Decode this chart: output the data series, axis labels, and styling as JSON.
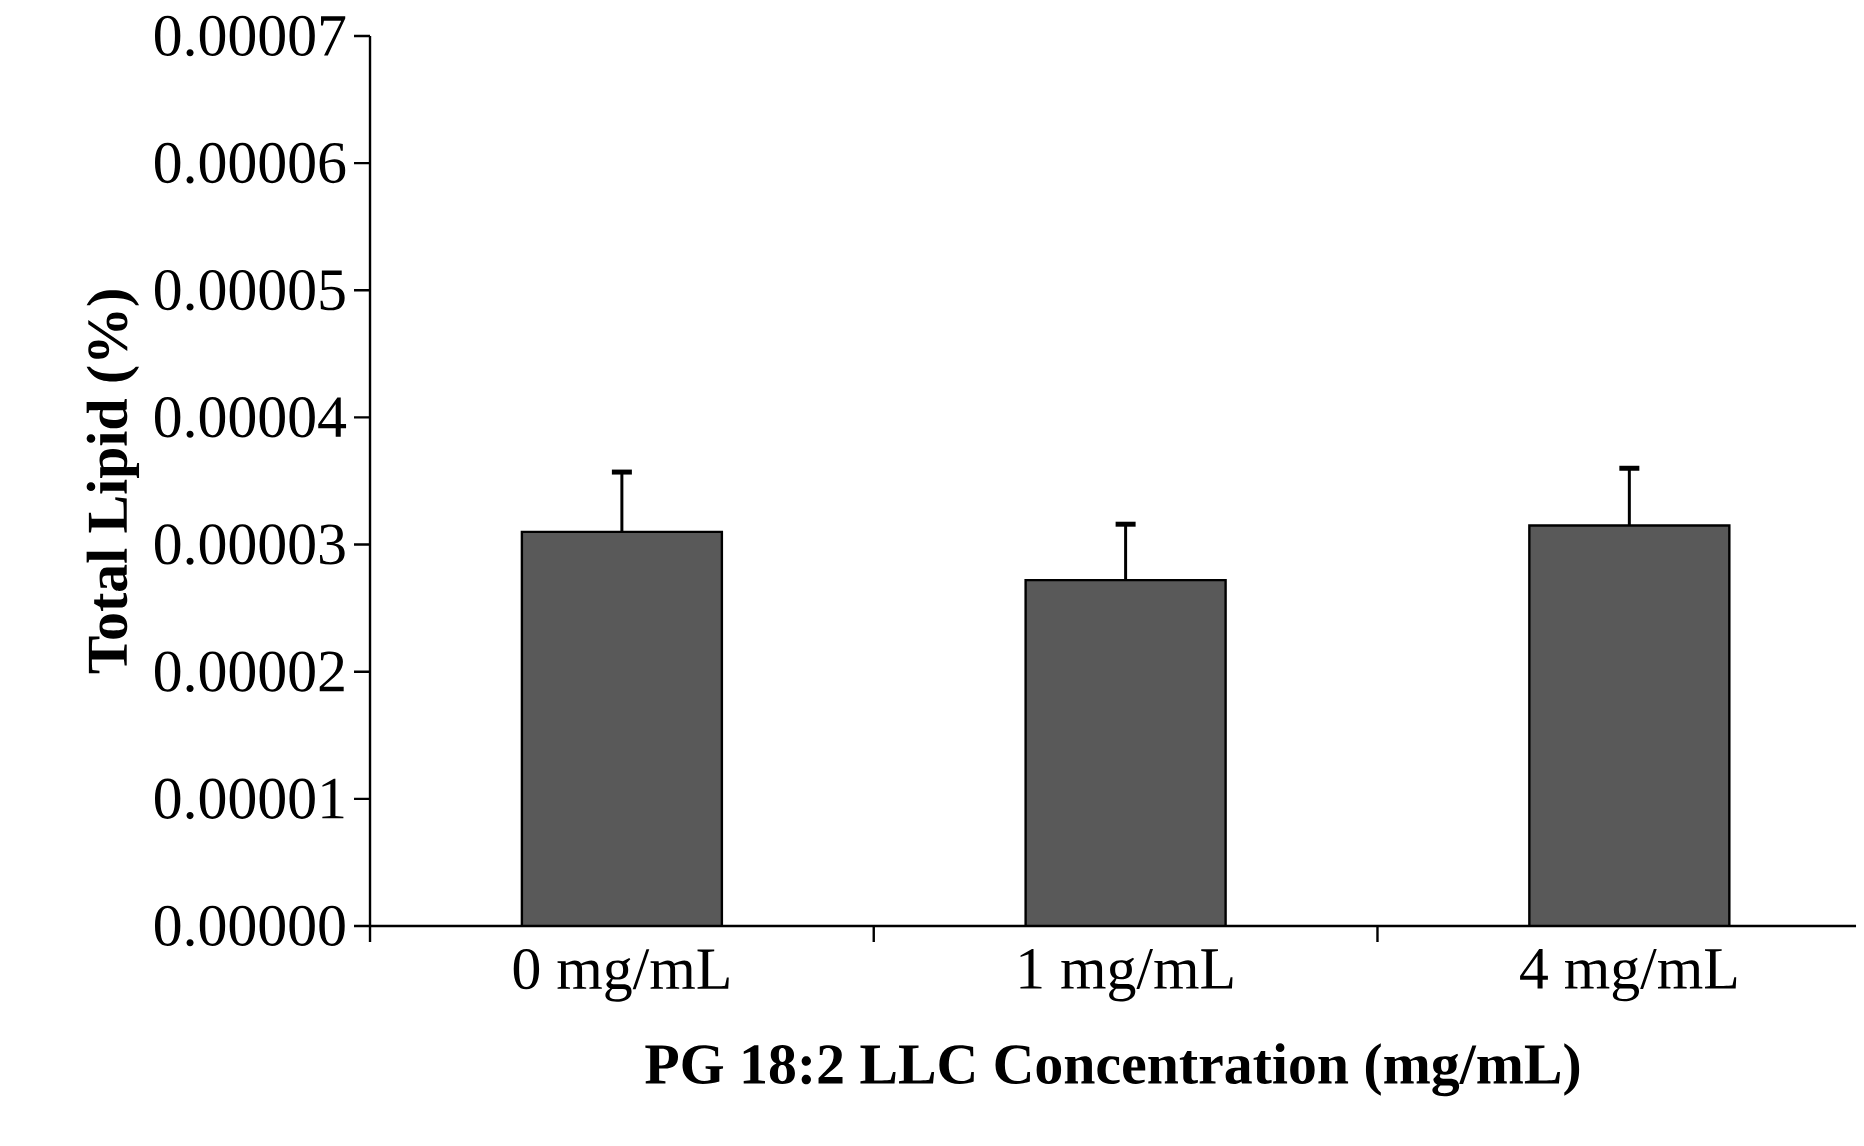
{
  "chart_data": {
    "type": "bar",
    "xlabel": "PG 18:2 LLC Concentration (mg/mL)",
    "ylabel": "Total Lipid (%)",
    "categories": [
      "0 mg/mL",
      "1 mg/mL",
      "4 mg/mL"
    ],
    "values": [
      3.1e-05,
      2.72e-05,
      3.15e-05
    ],
    "errors": [
      [
        3.1e-05,
        3.57e-05
      ],
      [
        2.72e-05,
        3.16e-05
      ],
      [
        3.15e-05,
        3.6e-05
      ]
    ],
    "color": "#595959",
    "ylim": [
      0,
      7e-05
    ],
    "yticks": [
      {
        "value": 0,
        "label": "0.00000"
      },
      {
        "value": 1e-05,
        "label": "0.00001"
      },
      {
        "value": 2e-05,
        "label": "0.00002"
      },
      {
        "value": 3e-05,
        "label": "0.00003"
      },
      {
        "value": 4e-05,
        "label": "0.00004"
      },
      {
        "value": 5e-05,
        "label": "0.00005"
      },
      {
        "value": 6e-05,
        "label": "0.00006"
      },
      {
        "value": 7e-05,
        "label": "0.00007"
      }
    ],
    "grid": false
  }
}
